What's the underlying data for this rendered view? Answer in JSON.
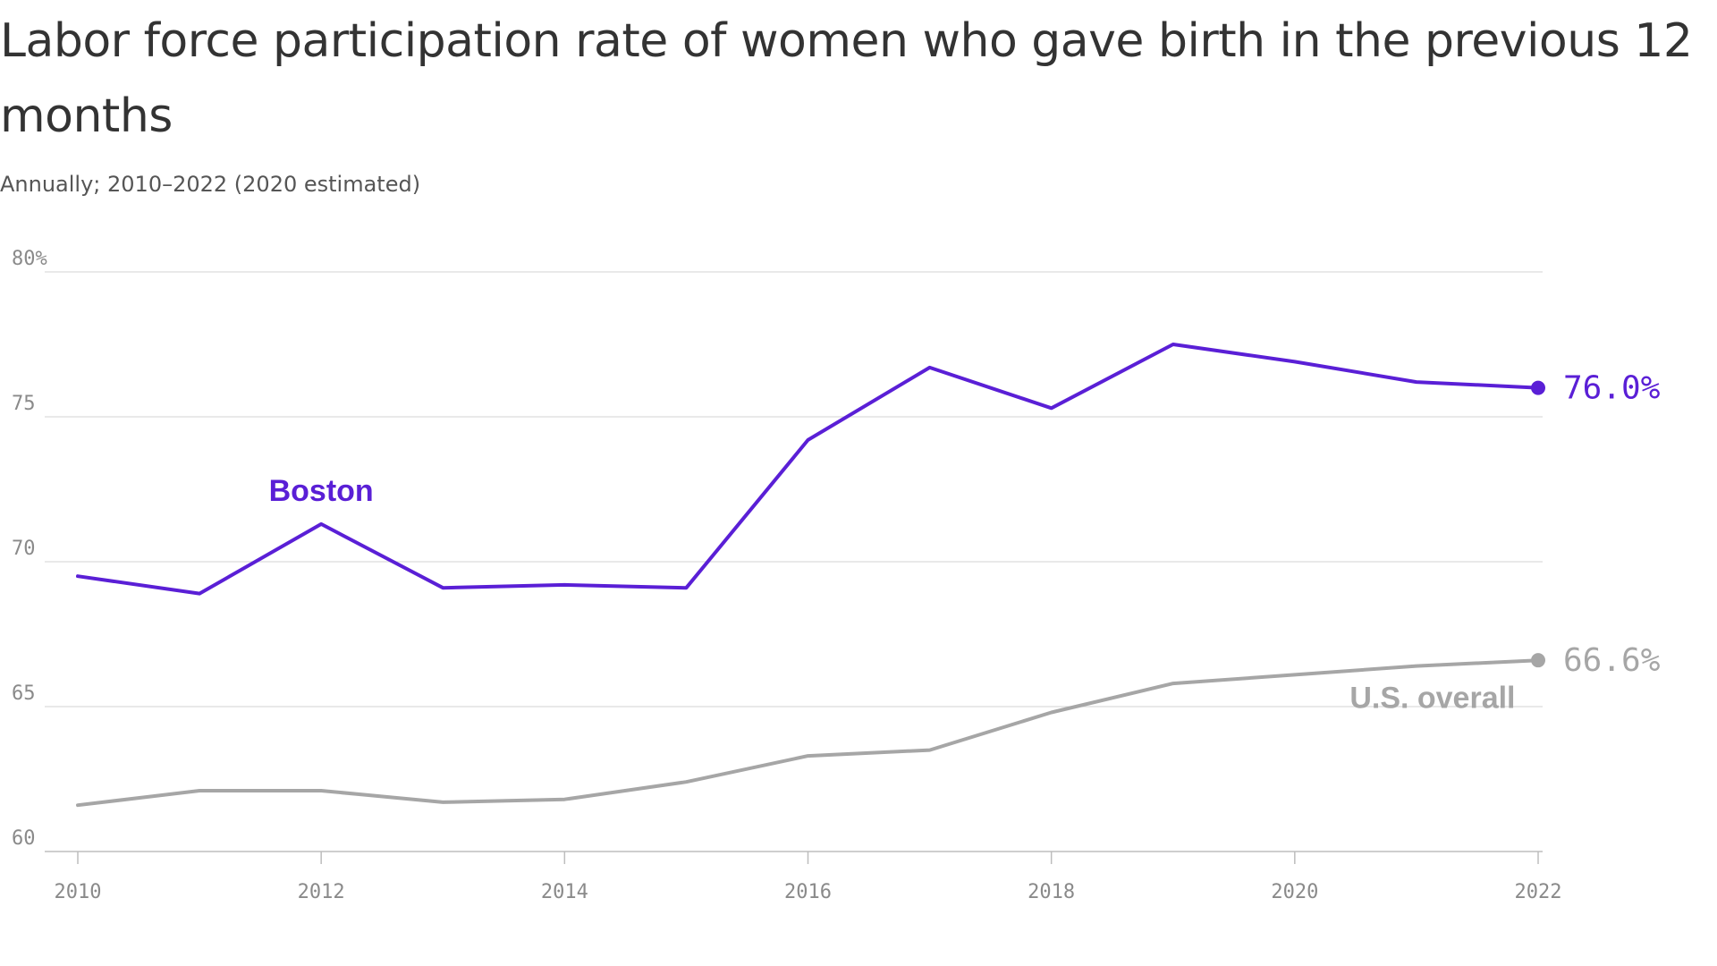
{
  "chart_data": {
    "type": "line",
    "title": "Labor force participation rate of women who gave birth in the previous 12 months",
    "subtitle": "Annually; 2010–2022 (2020 estimated)",
    "x": [
      2010,
      2011,
      2012,
      2013,
      2014,
      2015,
      2016,
      2017,
      2018,
      2019,
      2020,
      2021,
      2022
    ],
    "xticks": [
      2010,
      2012,
      2014,
      2016,
      2018,
      2020,
      2022
    ],
    "xtick_labels": [
      "2010",
      "2012",
      "2014",
      "2016",
      "2018",
      "2020",
      "2022"
    ],
    "yticks": [
      60,
      65,
      70,
      75,
      80
    ],
    "ytick_labels": [
      "60",
      "65",
      "70",
      "75",
      "80%"
    ],
    "xlim": [
      2010,
      2022
    ],
    "ylim": [
      60,
      80
    ],
    "grid": "horizontal",
    "series": [
      {
        "name": "Boston",
        "color": "#5a1fd6",
        "values": [
          69.5,
          68.9,
          71.3,
          69.1,
          69.2,
          69.1,
          74.2,
          76.7,
          75.3,
          77.5,
          76.9,
          76.2,
          76.0
        ],
        "end_label": "76.0%"
      },
      {
        "name": "U.S. overall",
        "color": "#a6a6a6",
        "values": [
          61.6,
          62.1,
          62.1,
          61.7,
          61.8,
          62.4,
          63.3,
          63.5,
          64.8,
          65.8,
          66.1,
          66.4,
          66.6
        ],
        "end_label": "66.6%"
      }
    ]
  }
}
